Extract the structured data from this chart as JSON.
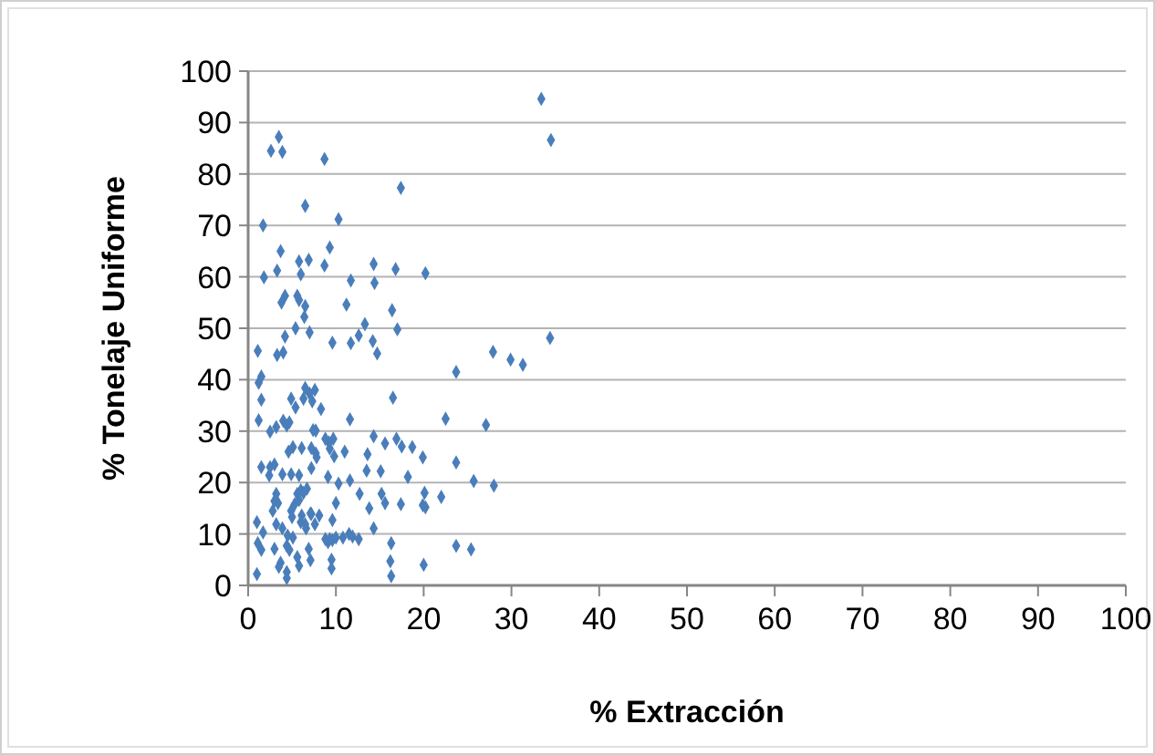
{
  "chart_data": {
    "type": "scatter",
    "xlabel": "% Extracción",
    "ylabel": "% Tonelaje Uniforme",
    "xlim": [
      0,
      100
    ],
    "ylim": [
      0,
      100
    ],
    "xticks": [
      0,
      10,
      20,
      30,
      40,
      50,
      60,
      70,
      80,
      90,
      100
    ],
    "yticks": [
      0,
      10,
      20,
      30,
      40,
      50,
      60,
      70,
      80,
      90,
      100
    ],
    "grid": "y",
    "marker": "diamond",
    "series": [
      {
        "color": "#4a7ebb",
        "x": [
          3.5,
          2.6,
          3.9,
          8.7,
          17.4,
          6.5,
          1.7,
          10.3,
          3.7,
          9.3,
          3.3,
          5.8,
          6.9,
          8.7,
          14.3,
          1.8,
          6,
          16.8,
          20.2,
          11.7,
          14.4,
          4.2,
          3.8,
          5.6,
          5.8,
          6.5,
          11.2,
          16.4,
          6.4,
          5.4,
          7,
          13.3,
          17,
          12.6,
          4.2,
          33.4,
          34.5,
          34.4,
          27.9,
          29.9,
          31.3,
          23.7,
          22.5,
          27.1,
          23.7,
          25.7,
          28,
          22,
          23.7,
          25.4,
          9.6,
          11.7,
          14.2,
          14.7,
          1.1,
          3.3,
          4,
          1.5,
          1.2,
          6.5,
          7.6,
          7,
          4.9,
          6.3,
          7.3,
          5.4,
          8.3,
          1.5,
          16.5,
          4,
          4.7,
          4.4,
          1.2,
          11.6,
          3.2,
          2.5,
          7.4,
          7.7,
          8.8,
          9.2,
          9.7,
          14.3,
          15.6,
          16.9,
          17.5,
          18.7,
          5.1,
          6.1,
          7.2,
          9.3,
          7.7,
          7.8,
          4.6,
          11,
          9.8,
          13.6,
          19.9,
          1.5,
          2.5,
          3,
          7.2,
          13.5,
          15.1,
          2.4,
          3.9,
          4.9,
          5.8,
          9.1,
          11.6,
          10.3,
          18.2,
          3.2,
          5.6,
          6,
          6.3,
          6.7,
          12.7,
          15.2,
          20.1,
          3,
          3.4,
          5.8,
          5.3,
          10,
          15.6,
          17.4,
          13.8,
          19.9,
          20.2,
          2.8,
          4.9,
          7.1,
          5,
          6.1,
          7.2,
          8.1,
          1,
          3.2,
          3.9,
          6,
          6.5,
          6.6,
          7.6,
          9.6,
          1.7,
          4.5,
          5.1,
          8.8,
          9.1,
          9.3,
          9.6,
          10,
          10.8,
          11.5,
          11.9,
          12.6,
          14.3,
          16.3,
          1.1,
          1.5,
          3,
          4.4,
          4.7,
          6.9,
          5.6,
          7.1,
          9.5,
          3.7,
          3.5,
          4.4,
          5.8,
          9.5,
          16.2,
          20,
          1,
          4.4,
          16.3
        ],
        "values": [
          87.2,
          84.5,
          84.3,
          82.9,
          77.3,
          73.8,
          70,
          71.2,
          65,
          65.7,
          61.2,
          63,
          63.3,
          62.2,
          62.5,
          59.9,
          60.5,
          61.5,
          60.7,
          59.3,
          58.8,
          56.3,
          55,
          56.3,
          55.5,
          54.3,
          54.6,
          53.5,
          52.2,
          50,
          49.2,
          50.8,
          49.8,
          48.6,
          48.4,
          94.6,
          86.6,
          48.1,
          45.4,
          43.9,
          42.9,
          41.5,
          32.4,
          31.2,
          23.9,
          20.3,
          19.4,
          17.2,
          7.7,
          7,
          47.2,
          47.1,
          47.5,
          45.1,
          45.6,
          44.8,
          45.3,
          40.6,
          39.4,
          38.4,
          38,
          37.3,
          36.3,
          36.3,
          35.8,
          34.6,
          34.3,
          36.1,
          36.5,
          32,
          31.7,
          31.1,
          32.1,
          32.3,
          30.8,
          29.9,
          30.2,
          30.1,
          28.5,
          27.8,
          28.5,
          29,
          27.6,
          28.5,
          27,
          26.9,
          26.9,
          26.7,
          26.7,
          26.6,
          25.7,
          24.9,
          26,
          26,
          25.1,
          25.5,
          24.9,
          23,
          23,
          23.5,
          22.8,
          22.3,
          22.2,
          21.4,
          21.6,
          21.6,
          21.4,
          21.1,
          20.4,
          19.8,
          21.1,
          17.8,
          17.8,
          18.5,
          18,
          18.8,
          17.8,
          17.8,
          18,
          16.4,
          16,
          16.6,
          15.8,
          16,
          16,
          15.8,
          15,
          15.6,
          15.2,
          14.5,
          14.5,
          14,
          13.3,
          13.6,
          13.9,
          13.6,
          12.3,
          11.9,
          11.1,
          12.3,
          11.9,
          11.1,
          11.9,
          12.7,
          10.3,
          9.7,
          9.3,
          9,
          8.4,
          9,
          8.8,
          9.3,
          9.3,
          10,
          9.5,
          9,
          11.1,
          8.2,
          8.2,
          6.9,
          7.1,
          7.7,
          6.9,
          7.1,
          5.5,
          4.9,
          5,
          4.4,
          3.6,
          2.6,
          3.8,
          3.3,
          4.7,
          4,
          2.2,
          1.4,
          1.8
        ]
      }
    ]
  }
}
